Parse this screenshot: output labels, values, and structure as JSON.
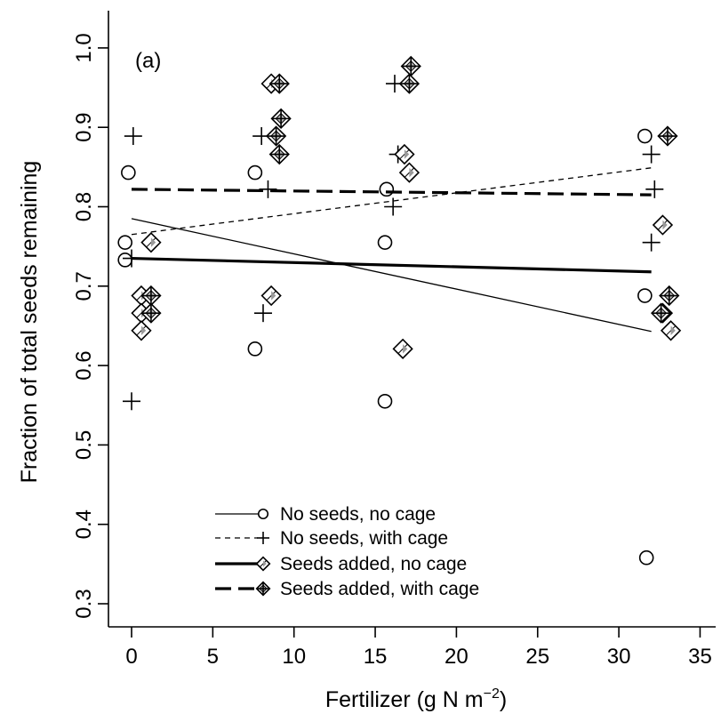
{
  "chart_data": {
    "type": "scatter",
    "panel_label": "(a)",
    "xlabel": "Fertilizer (g N m",
    "xlabel_superscript": "−2",
    "xlabel_suffix": ")",
    "ylabel": "Fraction of total seeds remaining",
    "xlim": [
      -1.5,
      36
    ],
    "ylim": [
      0.27,
      1.05
    ],
    "x_ticks": [
      0,
      5,
      10,
      15,
      20,
      25,
      30,
      35
    ],
    "y_ticks": [
      0.3,
      0.4,
      0.5,
      0.6,
      0.7,
      0.8,
      0.9,
      1.0
    ],
    "x_tick_labels": [
      "0",
      "5",
      "10",
      "15",
      "20",
      "25",
      "30",
      "35"
    ],
    "y_tick_labels": [
      "0.3",
      "0.4",
      "0.5",
      "0.6",
      "0.7",
      "0.8",
      "0.9",
      "1.0"
    ],
    "legend_position": "bottom-center",
    "series": [
      {
        "name": "No seeds, no cage",
        "marker": "circle",
        "line_style": "solid-thin",
        "points": [
          [
            -0.2,
            0.843
          ],
          [
            -0.4,
            0.755
          ],
          [
            -0.4,
            0.733
          ],
          [
            7.6,
            0.843
          ],
          [
            7.6,
            0.621
          ],
          [
            15.7,
            0.822
          ],
          [
            15.6,
            0.755
          ],
          [
            15.6,
            0.555
          ],
          [
            31.6,
            0.889
          ],
          [
            31.6,
            0.688
          ],
          [
            31.7,
            0.358
          ]
        ],
        "fit": [
          [
            0,
            0.785
          ],
          [
            32,
            0.643
          ]
        ]
      },
      {
        "name": "No seeds, with cage",
        "marker": "plus",
        "line_style": "dashed-thin",
        "points": [
          [
            0.1,
            0.889
          ],
          [
            0.0,
            0.735
          ],
          [
            0.0,
            0.555
          ],
          [
            8.0,
            0.889
          ],
          [
            8.4,
            0.822
          ],
          [
            8.1,
            0.666
          ],
          [
            16.2,
            0.955
          ],
          [
            16.4,
            0.866
          ],
          [
            16.1,
            0.8
          ],
          [
            32.0,
            0.866
          ],
          [
            32.2,
            0.822
          ],
          [
            32.0,
            0.755
          ]
        ],
        "fit": [
          [
            0,
            0.765
          ],
          [
            32,
            0.849
          ]
        ]
      },
      {
        "name": "Seeds added, no cage",
        "marker": "diamond",
        "line_style": "solid-thick",
        "points": [
          [
            0.6,
            0.688
          ],
          [
            0.6,
            0.666
          ],
          [
            0.6,
            0.644
          ],
          [
            1.2,
            0.755
          ],
          [
            8.6,
            0.955
          ],
          [
            8.6,
            0.688
          ],
          [
            16.8,
            0.866
          ],
          [
            17.1,
            0.843
          ],
          [
            16.7,
            0.621
          ],
          [
            32.7,
            0.777
          ],
          [
            32.7,
            0.666
          ],
          [
            33.2,
            0.644
          ]
        ],
        "fit": [
          [
            0,
            0.735
          ],
          [
            32,
            0.718
          ]
        ]
      },
      {
        "name": "Seeds added, with cage",
        "marker": "diamond-plus",
        "line_style": "dashed-thick",
        "points": [
          [
            1.2,
            0.688
          ],
          [
            1.2,
            0.666
          ],
          [
            9.1,
            0.955
          ],
          [
            9.2,
            0.911
          ],
          [
            8.9,
            0.889
          ],
          [
            9.1,
            0.866
          ],
          [
            17.2,
            0.977
          ],
          [
            17.1,
            0.955
          ],
          [
            33.0,
            0.889
          ],
          [
            33.1,
            0.688
          ],
          [
            32.6,
            0.666
          ]
        ],
        "fit": [
          [
            0,
            0.822
          ],
          [
            32,
            0.815
          ]
        ]
      }
    ]
  }
}
